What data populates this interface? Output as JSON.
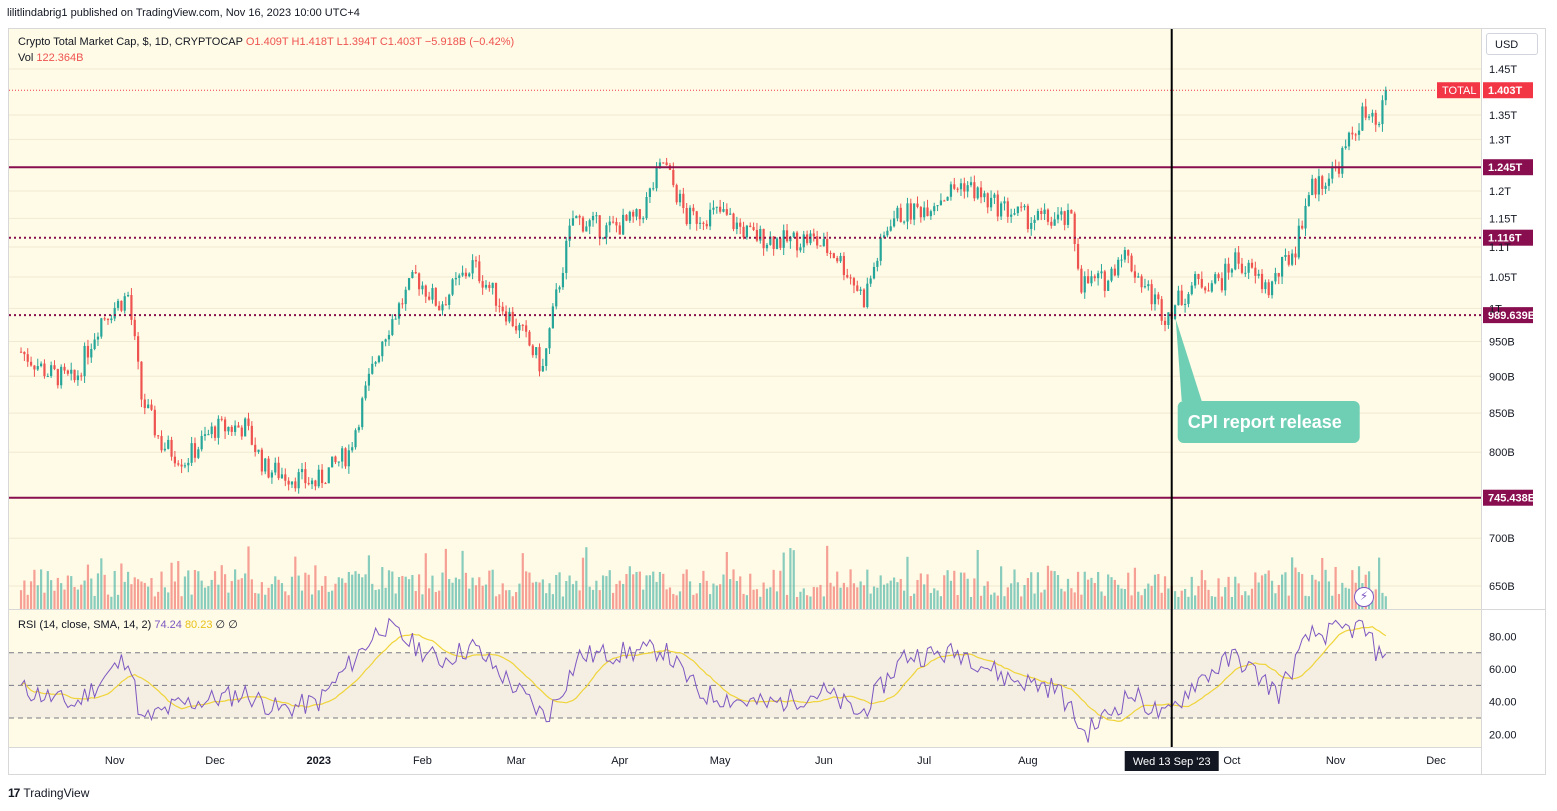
{
  "header": {
    "published_text": "lilitlindabrig1 published on TradingView.com, Nov 16, 2023 10:00 UTC+4"
  },
  "legend": {
    "symbol": "Crypto Total Market Cap, $, 1D, CRYPTOCAP",
    "open": "O1.409T",
    "high": "H1.418T",
    "low": "L1.394T",
    "close": "C1.403T",
    "change": "−5.918B (−0.42%)",
    "vol_label": "Vol",
    "vol_value": "122.364B",
    "rsi_label": "RSI (14, close, SMA, 14, 2)",
    "rsi_value": "74.24",
    "rsi_sma": "80.23",
    "rsi_extra1": "∅",
    "rsi_extra2": "∅"
  },
  "currency_button": "USD",
  "footer": {
    "brand": "TradingView",
    "icon": "tradingview-logo-icon"
  },
  "colors": {
    "background": "#fffbe6",
    "up": "#26a69a",
    "down": "#ef5350",
    "level_line": "#880e4f",
    "rsi_line": "#7e57c2",
    "rsi_sma": "#f0d43a",
    "callout": "#6fcfb5",
    "price_tag": "#f23645"
  },
  "chart_data": {
    "type": "candlestick",
    "title": "Crypto Total Market Cap, $, 1D, CRYPTOCAP",
    "y_scale": "log",
    "y_ticks": [
      "1.45T",
      "1.35T",
      "1.3T",
      "1.2T",
      "1.15T",
      "1.1T",
      "1.05T",
      "1T",
      "950B",
      "900B",
      "850B",
      "800B",
      "700B",
      "650B"
    ],
    "y_tick_values": [
      1450,
      1350,
      1300,
      1200,
      1150,
      1100,
      1050,
      1000,
      950,
      900,
      850,
      800,
      700,
      650
    ],
    "x_ticks": [
      "Nov",
      "Dec",
      "2023",
      "Feb",
      "Mar",
      "Apr",
      "May",
      "Jun",
      "Jul",
      "Aug",
      "Oct",
      "Nov",
      "Dec"
    ],
    "x_tick_dates": [
      "2022-11-01",
      "2022-12-01",
      "2023-01-01",
      "2023-02-01",
      "2023-03-01",
      "2023-04-01",
      "2023-05-01",
      "2023-06-01",
      "2023-07-01",
      "2023-08-01",
      "2023-10-01",
      "2023-11-01",
      "2023-12-01"
    ],
    "price_anchors_billions": [
      {
        "date": "2022-10-04",
        "close": 935
      },
      {
        "date": "2022-10-12",
        "close": 905
      },
      {
        "date": "2022-10-20",
        "close": 893
      },
      {
        "date": "2022-10-28",
        "close": 985
      },
      {
        "date": "2022-11-05",
        "close": 1020
      },
      {
        "date": "2022-11-09",
        "close": 870
      },
      {
        "date": "2022-11-15",
        "close": 810
      },
      {
        "date": "2022-11-22",
        "close": 790
      },
      {
        "date": "2022-12-01",
        "close": 830
      },
      {
        "date": "2022-12-10",
        "close": 832
      },
      {
        "date": "2022-12-16",
        "close": 780
      },
      {
        "date": "2022-12-31",
        "close": 762
      },
      {
        "date": "2023-01-10",
        "close": 800
      },
      {
        "date": "2023-01-20",
        "close": 955
      },
      {
        "date": "2023-01-30",
        "close": 1050
      },
      {
        "date": "2023-02-06",
        "close": 1005
      },
      {
        "date": "2023-02-16",
        "close": 1070
      },
      {
        "date": "2023-02-24",
        "close": 1010
      },
      {
        "date": "2023-03-03",
        "close": 960
      },
      {
        "date": "2023-03-09",
        "close": 910
      },
      {
        "date": "2023-03-18",
        "close": 1150
      },
      {
        "date": "2023-03-28",
        "close": 1130
      },
      {
        "date": "2023-04-07",
        "close": 1150
      },
      {
        "date": "2023-04-14",
        "close": 1255
      },
      {
        "date": "2023-04-21",
        "close": 1150
      },
      {
        "date": "2023-05-01",
        "close": 1160
      },
      {
        "date": "2023-05-10",
        "close": 1120
      },
      {
        "date": "2023-05-20",
        "close": 1110
      },
      {
        "date": "2023-05-28",
        "close": 1115
      },
      {
        "date": "2023-06-05",
        "close": 1085
      },
      {
        "date": "2023-06-13",
        "close": 1015
      },
      {
        "date": "2023-06-21",
        "close": 1150
      },
      {
        "date": "2023-07-01",
        "close": 1170
      },
      {
        "date": "2023-07-13",
        "close": 1215
      },
      {
        "date": "2023-07-20",
        "close": 1180
      },
      {
        "date": "2023-08-01",
        "close": 1150
      },
      {
        "date": "2023-08-14",
        "close": 1145
      },
      {
        "date": "2023-08-17",
        "close": 1040
      },
      {
        "date": "2023-08-25",
        "close": 1045
      },
      {
        "date": "2023-08-29",
        "close": 1095
      },
      {
        "date": "2023-09-05",
        "close": 1035
      },
      {
        "date": "2023-09-11",
        "close": 990
      },
      {
        "date": "2023-09-20",
        "close": 1040
      },
      {
        "date": "2023-09-28",
        "close": 1045
      },
      {
        "date": "2023-10-02",
        "close": 1080
      },
      {
        "date": "2023-10-12",
        "close": 1030
      },
      {
        "date": "2023-10-20",
        "close": 1100
      },
      {
        "date": "2023-10-24",
        "close": 1200
      },
      {
        "date": "2023-11-01",
        "close": 1240
      },
      {
        "date": "2023-11-09",
        "close": 1350
      },
      {
        "date": "2023-11-14",
        "close": 1320
      },
      {
        "date": "2023-11-16",
        "close": 1403
      }
    ],
    "horizontal_levels": [
      {
        "value": "1.245T",
        "value_b": 1245,
        "style": "solid"
      },
      {
        "value": "1.116T",
        "value_b": 1116,
        "style": "dotted"
      },
      {
        "value": "989.639B",
        "value_b": 989.639,
        "style": "dotted"
      },
      {
        "value": "745.438B",
        "value_b": 745.438,
        "style": "solid"
      }
    ],
    "last_price": {
      "label": "TOTAL",
      "value": "1.403T",
      "value_b": 1403
    },
    "crosshair": {
      "date": "2023-09-13",
      "label": "Wed 13 Sep '23"
    },
    "annotation": {
      "text": "CPI report release",
      "date": "2023-09-13"
    },
    "rsi": {
      "y_ticks": [
        "80.00",
        "60.00",
        "40.00",
        "20.00"
      ],
      "y_tick_values": [
        80,
        60,
        40,
        20
      ],
      "levels": [
        70,
        50,
        30
      ],
      "anchors": [
        {
          "date": "2022-10-04",
          "value": 48
        },
        {
          "date": "2022-10-20",
          "value": 38
        },
        {
          "date": "2022-11-05",
          "value": 68
        },
        {
          "date": "2022-11-09",
          "value": 28
        },
        {
          "date": "2022-11-20",
          "value": 38
        },
        {
          "date": "2022-12-10",
          "value": 45
        },
        {
          "date": "2022-12-20",
          "value": 35
        },
        {
          "date": "2023-01-01",
          "value": 40
        },
        {
          "date": "2023-01-20",
          "value": 87
        },
        {
          "date": "2023-02-06",
          "value": 65
        },
        {
          "date": "2023-02-16",
          "value": 74
        },
        {
          "date": "2023-03-10",
          "value": 30
        },
        {
          "date": "2023-03-20",
          "value": 68
        },
        {
          "date": "2023-04-14",
          "value": 72
        },
        {
          "date": "2023-04-25",
          "value": 45
        },
        {
          "date": "2023-05-15",
          "value": 38
        },
        {
          "date": "2023-06-01",
          "value": 46
        },
        {
          "date": "2023-06-12",
          "value": 32
        },
        {
          "date": "2023-06-25",
          "value": 68
        },
        {
          "date": "2023-07-13",
          "value": 70
        },
        {
          "date": "2023-07-25",
          "value": 55
        },
        {
          "date": "2023-08-10",
          "value": 48
        },
        {
          "date": "2023-08-18",
          "value": 20
        },
        {
          "date": "2023-09-01",
          "value": 45
        },
        {
          "date": "2023-09-11",
          "value": 30
        },
        {
          "date": "2023-09-20",
          "value": 52
        },
        {
          "date": "2023-10-02",
          "value": 68
        },
        {
          "date": "2023-10-15",
          "value": 45
        },
        {
          "date": "2023-10-24",
          "value": 80
        },
        {
          "date": "2023-11-09",
          "value": 86
        },
        {
          "date": "2023-11-14",
          "value": 68
        },
        {
          "date": "2023-11-16",
          "value": 74
        }
      ]
    }
  }
}
